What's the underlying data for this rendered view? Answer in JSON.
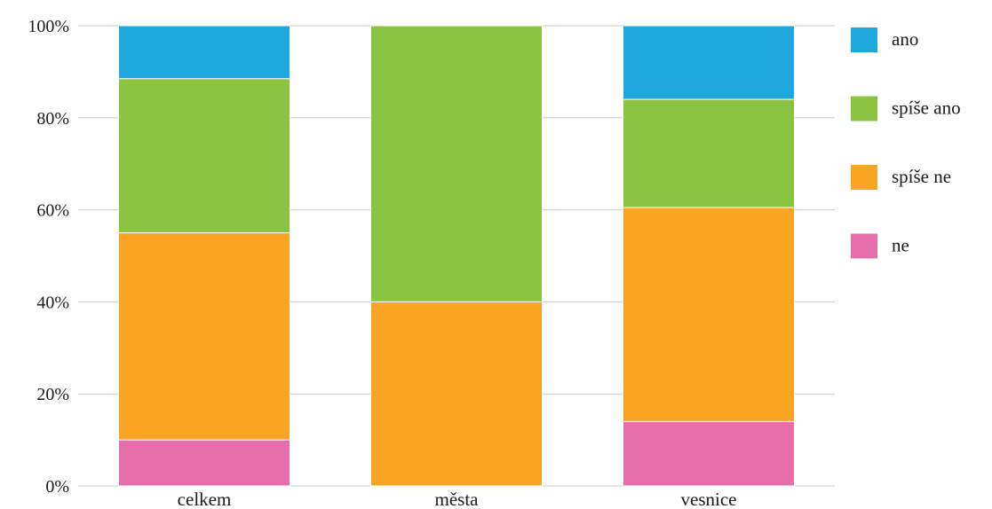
{
  "colors": {
    "ano": "#1ea7dd",
    "spise_ano": "#8bc440",
    "spise_ne": "#f9a422",
    "ne": "#e66fab",
    "grid": "#c9c9c9",
    "text": "#1a1a1a"
  },
  "chart_data": {
    "type": "bar",
    "stacked": true,
    "categories": [
      "celkem",
      "města",
      "vesnice"
    ],
    "series": [
      {
        "name": "ne",
        "values": [
          10,
          0,
          14
        ],
        "color": "#e66fab"
      },
      {
        "name": "spíše ne",
        "values": [
          45,
          40,
          46.5
        ],
        "color": "#f9a422"
      },
      {
        "name": "spíše ano",
        "values": [
          33.5,
          60,
          23.5
        ],
        "color": "#8bc440"
      },
      {
        "name": "ano",
        "values": [
          11.5,
          0,
          16
        ],
        "color": "#1ea7dd"
      }
    ],
    "legend_order": [
      "ano",
      "spíše ano",
      "spíše ne",
      "ne"
    ],
    "ylim": [
      0,
      100
    ],
    "yticks": [
      "0%",
      "20%",
      "40%",
      "60%",
      "80%",
      "100%"
    ],
    "grid": true,
    "legend_position": "right",
    "title": "",
    "xlabel": "",
    "ylabel": ""
  }
}
